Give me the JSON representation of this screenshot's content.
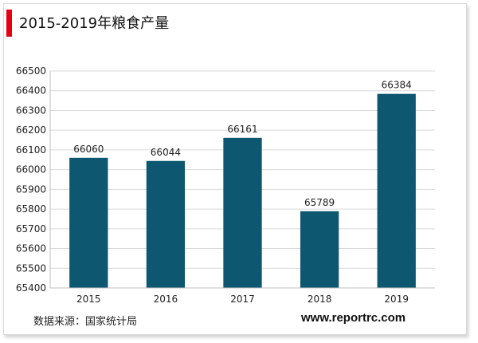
{
  "header": {
    "title": "2015-2019年粮食产量"
  },
  "footer": {
    "source": "数据来源：国家统计局",
    "website": "www.reportrc.com"
  },
  "colors": {
    "bar": "#0d5770",
    "accent": "#e60012",
    "grid": "#d9d9d9"
  },
  "chart_data": {
    "type": "bar",
    "title": "2015-2019年粮食产量",
    "xlabel": "",
    "ylabel": "",
    "categories": [
      "2015",
      "2016",
      "2017",
      "2018",
      "2019"
    ],
    "values": [
      66060,
      66044,
      66161,
      65789,
      66384
    ],
    "value_labels": [
      "66060",
      "66044",
      "66161",
      "65789",
      "66384"
    ],
    "ylim": [
      65400,
      66500
    ],
    "yticks": [
      65400,
      65500,
      65600,
      65700,
      65800,
      65900,
      66000,
      66100,
      66200,
      66300,
      66400,
      66500
    ],
    "grid": true,
    "legend": "none"
  }
}
